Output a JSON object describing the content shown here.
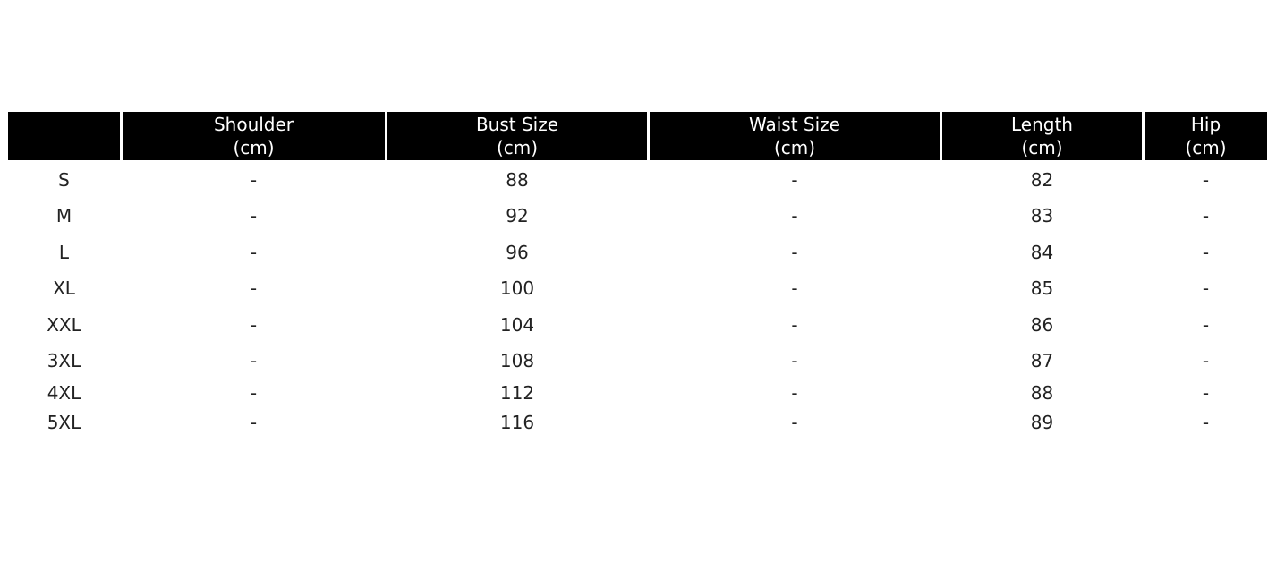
{
  "table": {
    "header": [
      [
        "Shoulder",
        "(cm)"
      ],
      [
        "Bust Size",
        "(cm)"
      ],
      [
        "Waist Size",
        "(cm)"
      ],
      [
        "Length",
        "(cm)"
      ],
      [
        "Hip",
        "(cm)"
      ]
    ],
    "rows": [
      [
        "S",
        "-",
        "88",
        "-",
        "82",
        "-"
      ],
      [
        "M",
        "-",
        "92",
        "-",
        "83",
        "-"
      ],
      [
        "L",
        "-",
        "96",
        "-",
        "84",
        "-"
      ],
      [
        "XL",
        "-",
        "100",
        "-",
        "85",
        "-"
      ],
      [
        "XXL",
        "-",
        "104",
        "-",
        "86",
        "-"
      ],
      [
        "3XL",
        "-",
        "108",
        "-",
        "87",
        "-"
      ],
      [
        "4XL",
        "-",
        "112",
        "-",
        "88",
        "-"
      ],
      [
        "5XL",
        "-",
        "116",
        "-",
        "89",
        "-"
      ]
    ]
  }
}
